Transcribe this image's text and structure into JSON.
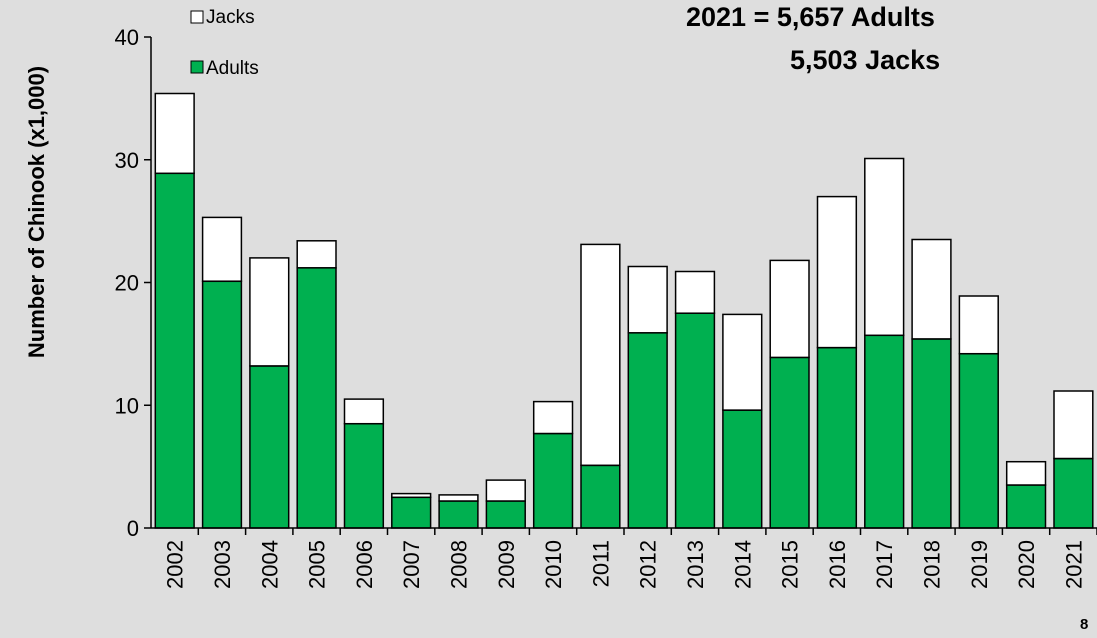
{
  "chart_data": {
    "type": "bar",
    "stacked": true,
    "categories": [
      "2002",
      "2003",
      "2004",
      "2005",
      "2006",
      "2007",
      "2008",
      "2009",
      "2010",
      "2011",
      "2012",
      "2013",
      "2014",
      "2015",
      "2016",
      "2017",
      "2018",
      "2019",
      "2020",
      "2021"
    ],
    "series": [
      {
        "name": "Adults",
        "color": "#00b050",
        "values": [
          28.9,
          20.1,
          13.2,
          21.2,
          8.5,
          2.5,
          2.2,
          2.2,
          7.7,
          5.1,
          15.9,
          17.5,
          9.6,
          13.9,
          14.7,
          15.7,
          15.4,
          14.2,
          3.5,
          5.657
        ]
      },
      {
        "name": "Jacks",
        "color": "#ffffff",
        "values": [
          6.5,
          5.2,
          8.8,
          2.2,
          2.0,
          0.3,
          0.5,
          1.7,
          2.6,
          18.0,
          5.4,
          3.4,
          7.8,
          7.9,
          12.3,
          14.4,
          8.1,
          4.7,
          1.9,
          5.503
        ]
      }
    ],
    "ylabel": "Number of Chinook (x1,000)",
    "xlabel": "",
    "ylim": [
      0,
      40
    ],
    "yticks": [
      "0",
      "10",
      "20",
      "30",
      "40"
    ],
    "legend": {
      "position": "top-left",
      "entries": [
        "Jacks",
        "Adults"
      ]
    },
    "grid": false,
    "annotations": [
      "2021 = 5,657 Adults",
      "5,503 Jacks"
    ]
  },
  "slide_number": "8"
}
